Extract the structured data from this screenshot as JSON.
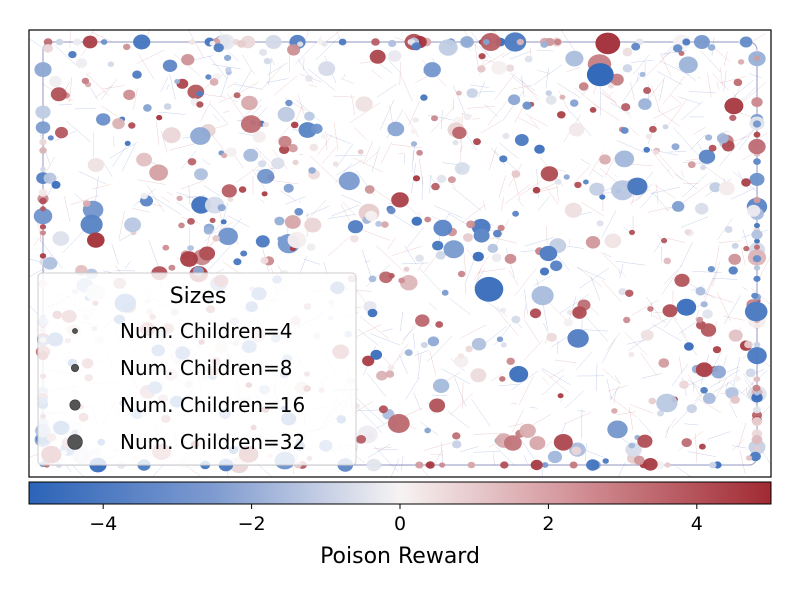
{
  "chart_data": {
    "type": "scatter",
    "description_free": true,
    "colormap": {
      "low": "#2c64b8",
      "mid": "#f7f3f3",
      "high": "#a12a33"
    },
    "colorbar": {
      "label": "Poison Reward",
      "range": [
        -5,
        5
      ],
      "ticks": [
        -4,
        -2,
        0,
        2,
        4
      ],
      "tick_labels": [
        "−4",
        "−2",
        "0",
        "2",
        "4"
      ]
    },
    "legend": {
      "title": "Sizes",
      "placement": "lower-left",
      "entries": [
        {
          "label": "Num. Children=4",
          "size_value": 4
        },
        {
          "label": "Num. Children=8",
          "size_value": 8
        },
        {
          "label": "Num. Children=16",
          "size_value": 16
        },
        {
          "label": "Num. Children=32",
          "size_value": 32
        }
      ]
    },
    "grid": false,
    "points": [
      {
        "x": 0.62,
        "y": 0.58,
        "children": 32,
        "reward": -4.5
      },
      {
        "x": 0.82,
        "y": 0.35,
        "children": 16,
        "reward": -4.2
      },
      {
        "x": 0.09,
        "y": 0.47,
        "children": 12,
        "reward": 4.6
      },
      {
        "x": 0.77,
        "y": 0.1,
        "children": 28,
        "reward": -4.8
      },
      {
        "x": 0.95,
        "y": 0.17,
        "children": 14,
        "reward": 4.4
      },
      {
        "x": 0.74,
        "y": 0.69,
        "children": 18,
        "reward": -3.9
      },
      {
        "x": 0.55,
        "y": 0.84,
        "children": 10,
        "reward": 3.8
      },
      {
        "x": 0.98,
        "y": 0.63,
        "children": 20,
        "reward": -4.1
      },
      {
        "x": 0.5,
        "y": 0.38,
        "children": 12,
        "reward": 4.2
      },
      {
        "x": 0.31,
        "y": 0.59,
        "children": 9,
        "reward": -3.5
      },
      {
        "x": 0.24,
        "y": 0.5,
        "children": 10,
        "reward": 4.0
      },
      {
        "x": 0.17,
        "y": 0.8,
        "children": 8,
        "reward": -3.2
      },
      {
        "x": 0.42,
        "y": 0.72,
        "children": 11,
        "reward": 3.6
      },
      {
        "x": 0.66,
        "y": 0.77,
        "children": 14,
        "reward": -4.4
      },
      {
        "x": 0.83,
        "y": 0.92,
        "children": 9,
        "reward": 3.9
      },
      {
        "x": 0.03,
        "y": 0.95,
        "children": 16,
        "reward": 4.5
      },
      {
        "x": 0.4,
        "y": 0.93,
        "children": 7,
        "reward": -3.0
      },
      {
        "x": 0.58,
        "y": 0.23,
        "children": 8,
        "reward": 3.4
      },
      {
        "x": 0.7,
        "y": 0.5,
        "children": 12,
        "reward": -4.0
      },
      {
        "x": 0.88,
        "y": 0.56,
        "children": 9,
        "reward": 3.7
      },
      {
        "x": 0.1,
        "y": 0.2,
        "children": 8,
        "reward": -3.3
      },
      {
        "x": 0.47,
        "y": 0.06,
        "children": 10,
        "reward": 4.1
      },
      {
        "x": 0.35,
        "y": 0.87,
        "children": 9,
        "reward": -3.8
      },
      {
        "x": 0.91,
        "y": 0.76,
        "children": 11,
        "reward": 4.3
      },
      {
        "x": 0.78,
        "y": 0.03,
        "children": 24,
        "reward": 4.7
      },
      {
        "x": 0.19,
        "y": 0.08,
        "children": 8,
        "reward": -3.6
      },
      {
        "x": 0.27,
        "y": 0.36,
        "children": 9,
        "reward": 3.5
      },
      {
        "x": 0.61,
        "y": 0.46,
        "children": 10,
        "reward": -3.7
      },
      {
        "x": 0.53,
        "y": 0.65,
        "children": 8,
        "reward": 3.3
      },
      {
        "x": 0.44,
        "y": 0.44,
        "children": 9,
        "reward": -3.9
      }
    ]
  }
}
